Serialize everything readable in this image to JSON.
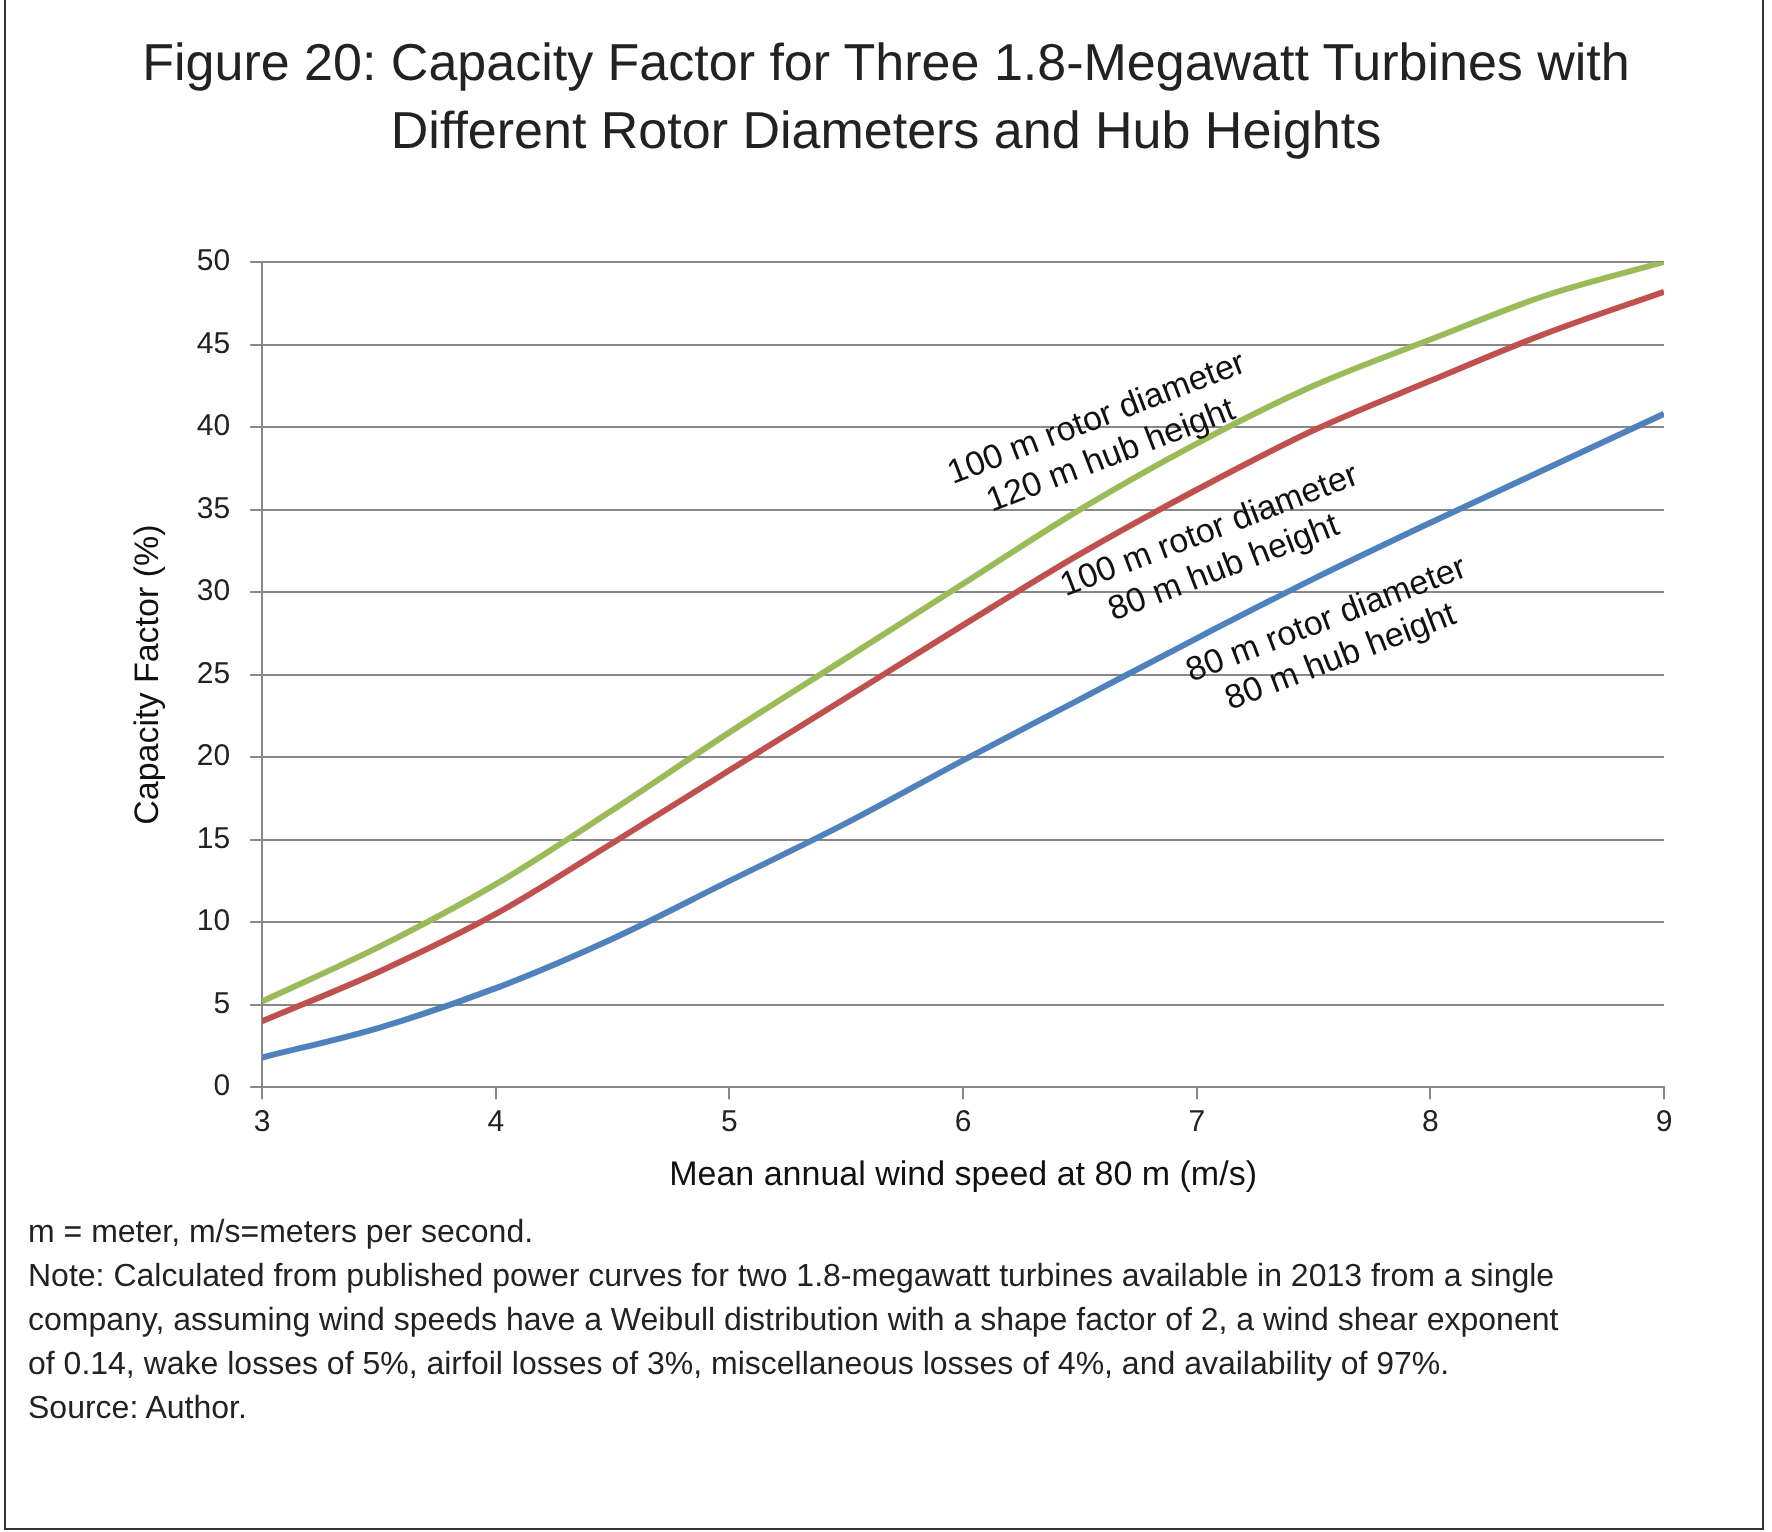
{
  "chart_data": {
    "type": "line",
    "title": "Figure 20: Capacity Factor for Three 1.8-Megawatt Turbines with Different Rotor Diameters and Hub Heights",
    "xlabel": "Mean annual wind speed at 80 m (m/s)",
    "ylabel": "Capacity Factor (%)",
    "x": [
      3,
      3.5,
      4,
      4.5,
      5,
      5.5,
      6,
      6.5,
      7,
      7.5,
      8,
      8.5,
      9
    ],
    "series": [
      {
        "color": "#9bbb59",
        "values": [
          5.2,
          8.5,
          12.3,
          16.8,
          21.5,
          26,
          30.5,
          35,
          39,
          42.5,
          45.3,
          48,
          50
        ]
      },
      {
        "color": "#c0504d",
        "values": [
          4,
          7,
          10.5,
          14.8,
          19.2,
          23.6,
          28,
          32.3,
          36.2,
          39.8,
          42.8,
          45.7,
          48.2
        ]
      },
      {
        "color": "#4f81bd",
        "values": [
          1.8,
          3.6,
          6,
          9,
          12.5,
          16,
          19.8,
          23.5,
          27.2,
          30.8,
          34.2,
          37.5,
          40.8
        ]
      }
    ],
    "xlim": [
      3,
      9
    ],
    "xticks": [
      3,
      4,
      5,
      6,
      7,
      8,
      9
    ],
    "ylim": [
      0,
      50
    ],
    "yticks": [
      0,
      5,
      10,
      15,
      20,
      25,
      30,
      35,
      40,
      45,
      50
    ],
    "grid": "y",
    "legend": false,
    "marker": "none",
    "line_style": "solid",
    "annotations": [
      {
        "text": "100 m rotor diameter\n120 m hub height",
        "x": 6.5,
        "y": 35
      },
      {
        "text": "100 m rotor diameter\n80 m hub height",
        "x": 7,
        "y": 36.2
      },
      {
        "text": "80 m rotor diameter\n80 m hub height",
        "x": 7.5,
        "y": 30.8
      },
      "m = meter, m/s=meters per second.",
      "Note: Calculated from published power curves for two 1.8-megawatt turbines available in 2013 from a single company, assuming wind speeds have a Weibull distribution with a shape factor of 2, a wind shear exponent of 0.14, wake losses of 5%, airfoil losses of 3%, miscellaneous losses of 4%, and availability of 97%.",
      "Source: Author."
    ]
  }
}
